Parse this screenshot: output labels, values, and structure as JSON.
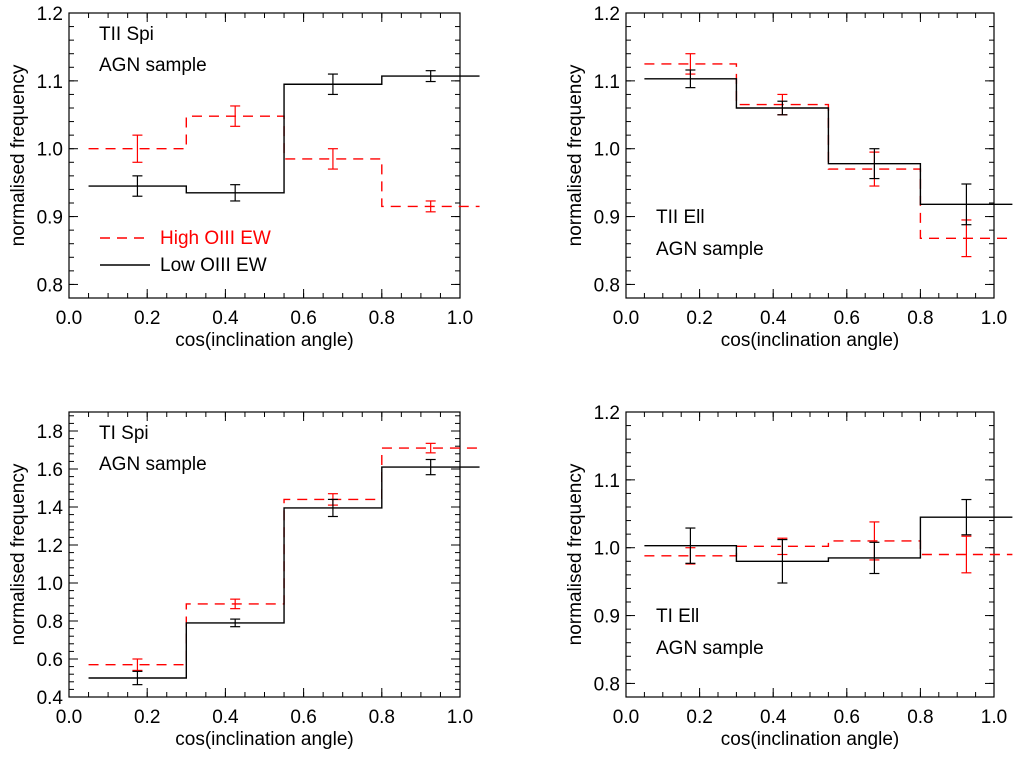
{
  "chart_data": [
    {
      "type": "line",
      "panel_lines": [
        "TII Spi",
        "AGN sample"
      ],
      "xlabel": "cos(inclination angle)",
      "ylabel": "normalised frequency",
      "xlim": [
        0.0,
        1.0
      ],
      "ylim": [
        0.78,
        1.2
      ],
      "xticks": [
        "0.0",
        "0.2",
        "0.4",
        "0.6",
        "0.8",
        "1.0"
      ],
      "yticks": [
        "0.8",
        "0.9",
        "1.0",
        "1.1",
        "1.2"
      ],
      "series": [
        {
          "name": "High OIII EW",
          "style": "dashed",
          "color": "#ff0000",
          "x": [
            0.175,
            0.425,
            0.675,
            0.925
          ],
          "values": [
            1.0,
            1.048,
            0.985,
            0.915
          ],
          "err": [
            0.02,
            0.015,
            0.015,
            0.008
          ]
        },
        {
          "name": "Low OIII EW",
          "style": "solid",
          "color": "#000000",
          "x": [
            0.175,
            0.425,
            0.675,
            0.925
          ],
          "values": [
            0.945,
            0.935,
            1.095,
            1.107
          ],
          "err": [
            0.015,
            0.012,
            0.015,
            0.008
          ]
        }
      ],
      "legend": [
        "High OIII EW",
        "Low OIII EW"
      ]
    },
    {
      "type": "line",
      "panel_lines": [
        "TII Ell",
        "AGN sample"
      ],
      "xlabel": "cos(inclination angle)",
      "ylabel": "normalised frequency",
      "xlim": [
        0.0,
        1.0
      ],
      "ylim": [
        0.78,
        1.2
      ],
      "xticks": [
        "0.0",
        "0.2",
        "0.4",
        "0.6",
        "0.8",
        "1.0"
      ],
      "yticks": [
        "0.8",
        "0.9",
        "1.0",
        "1.1",
        "1.2"
      ],
      "series": [
        {
          "name": "",
          "style": "dashed",
          "color": "#ff0000",
          "x": [
            0.175,
            0.425,
            0.675,
            0.925
          ],
          "values": [
            1.125,
            1.065,
            0.97,
            0.868
          ],
          "err": [
            0.015,
            0.015,
            0.025,
            0.027
          ]
        },
        {
          "name": "",
          "style": "solid",
          "color": "#000000",
          "x": [
            0.175,
            0.425,
            0.675,
            0.925
          ],
          "values": [
            1.103,
            1.06,
            0.978,
            0.918
          ],
          "err": [
            0.013,
            0.01,
            0.022,
            0.03
          ]
        }
      ]
    },
    {
      "type": "line",
      "panel_lines": [
        "TI Spi",
        "AGN sample"
      ],
      "xlabel": "cos(inclination angle)",
      "ylabel": "normalised frequency",
      "xlim": [
        0.0,
        1.0
      ],
      "ylim": [
        0.4,
        1.9
      ],
      "xticks": [
        "0.0",
        "0.2",
        "0.4",
        "0.6",
        "0.8",
        "1.0"
      ],
      "yticks": [
        "0.4",
        "0.6",
        "0.8",
        "1.0",
        "1.2",
        "1.4",
        "1.6",
        "1.8"
      ],
      "series": [
        {
          "name": "",
          "style": "dashed",
          "color": "#ff0000",
          "x": [
            0.175,
            0.425,
            0.675,
            0.925
          ],
          "values": [
            0.57,
            0.89,
            1.44,
            1.71
          ],
          "err": [
            0.03,
            0.025,
            0.03,
            0.025
          ]
        },
        {
          "name": "",
          "style": "solid",
          "color": "#000000",
          "x": [
            0.175,
            0.425,
            0.675,
            0.925
          ],
          "values": [
            0.5,
            0.79,
            1.395,
            1.61
          ],
          "err": [
            0.035,
            0.02,
            0.045,
            0.04
          ]
        }
      ]
    },
    {
      "type": "line",
      "panel_lines": [
        "TI Ell",
        "AGN sample"
      ],
      "xlabel": "cos(inclination angle)",
      "ylabel": "normalised frequency",
      "xlim": [
        0.0,
        1.0
      ],
      "ylim": [
        0.78,
        1.2
      ],
      "xticks": [
        "0.0",
        "0.2",
        "0.4",
        "0.6",
        "0.8",
        "1.0"
      ],
      "yticks": [
        "0.8",
        "0.9",
        "1.0",
        "1.1",
        "1.2"
      ],
      "series": [
        {
          "name": "",
          "style": "dashed",
          "color": "#ff0000",
          "x": [
            0.175,
            0.425,
            0.675,
            0.925
          ],
          "values": [
            0.988,
            1.002,
            1.01,
            0.99
          ],
          "err": [
            0.012,
            0.012,
            0.028,
            0.027
          ]
        },
        {
          "name": "",
          "style": "solid",
          "color": "#000000",
          "x": [
            0.175,
            0.425,
            0.675,
            0.925
          ],
          "values": [
            1.003,
            0.98,
            0.985,
            1.045
          ],
          "err": [
            0.026,
            0.032,
            0.023,
            0.026
          ]
        }
      ]
    }
  ]
}
